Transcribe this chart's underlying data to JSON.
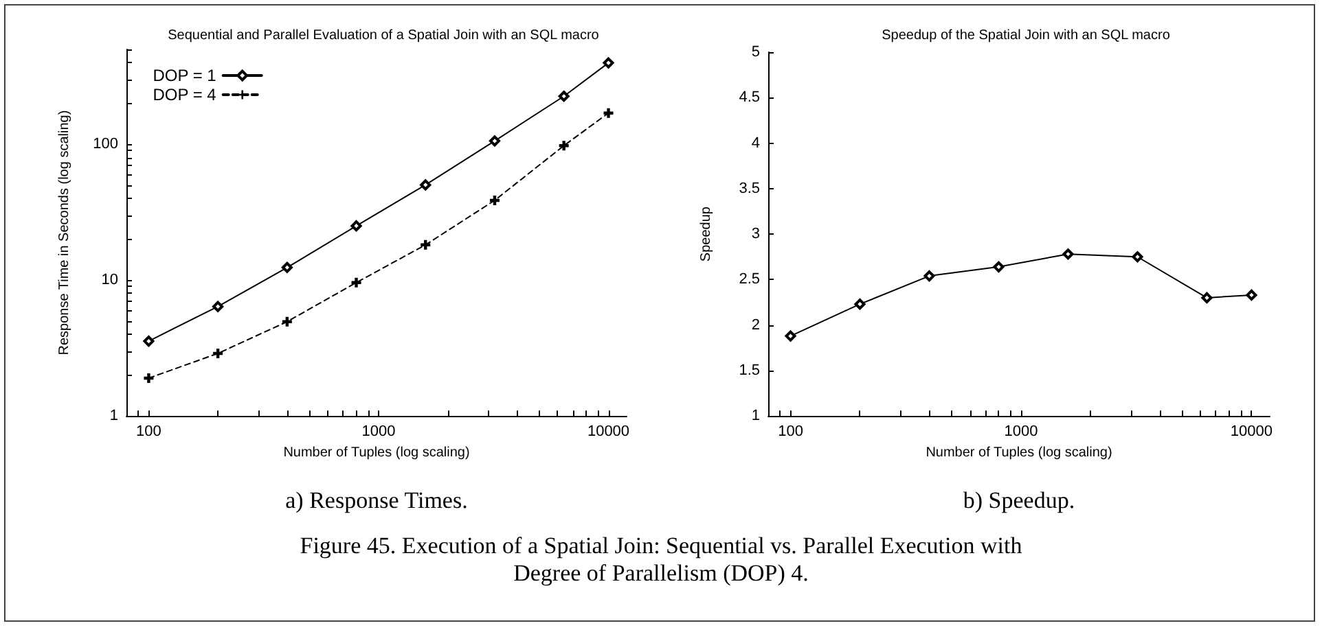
{
  "chart_data": [
    {
      "type": "line",
      "title": "Sequential and Parallel Evaluation of a Spatial Join with an SQL macro",
      "xlabel": "Number of Tuples (log scaling)",
      "ylabel": "Response Time in Seconds (log scaling)",
      "log": "xy",
      "x": [
        100,
        200,
        400,
        800,
        1600,
        3200,
        6400,
        10000
      ],
      "series": [
        {
          "name": "DOP = 1",
          "color": "#000000",
          "marker": "diamond",
          "line_style": "solid",
          "values": [
            3.56,
            6.4,
            12.4,
            25.1,
            50.3,
            106,
            226,
            398
          ]
        },
        {
          "name": "DOP = 4",
          "color": "#000000",
          "marker": "cross",
          "line_style": "dashed",
          "values": [
            1.9,
            2.89,
            4.95,
            9.6,
            18.2,
            38.7,
            97.8,
            170
          ]
        }
      ],
      "xlim": [
        80,
        12000
      ],
      "xticks": [
        {
          "value": 80,
          "label": null
        },
        {
          "value": 90,
          "label": null
        },
        100,
        {
          "value": 200,
          "label": null
        },
        {
          "value": 300,
          "label": null
        },
        {
          "value": 400,
          "label": null
        },
        {
          "value": 500,
          "label": null
        },
        {
          "value": 600,
          "label": null
        },
        {
          "value": 700,
          "label": null
        },
        {
          "value": 800,
          "label": null
        },
        {
          "value": 900,
          "label": null
        },
        1000,
        {
          "value": 2000,
          "label": null
        },
        {
          "value": 3000,
          "label": null
        },
        {
          "value": 4000,
          "label": null
        },
        {
          "value": 5000,
          "label": null
        },
        {
          "value": 6000,
          "label": null
        },
        {
          "value": 7000,
          "label": null
        },
        {
          "value": 8000,
          "label": null
        },
        {
          "value": 9000,
          "label": null
        },
        10000
      ],
      "ylim": [
        1,
        500
      ],
      "yticks": [
        1,
        {
          "value": 2,
          "label": null
        },
        {
          "value": 3,
          "label": null
        },
        {
          "value": 4,
          "label": null
        },
        {
          "value": 5,
          "label": null
        },
        {
          "value": 6,
          "label": null
        },
        {
          "value": 7,
          "label": null
        },
        {
          "value": 8,
          "label": null
        },
        {
          "value": 9,
          "label": null
        },
        10,
        {
          "value": 20,
          "label": null
        },
        {
          "value": 30,
          "label": null
        },
        {
          "value": 40,
          "label": null
        },
        {
          "value": 50,
          "label": null
        },
        {
          "value": 60,
          "label": null
        },
        {
          "value": 70,
          "label": null
        },
        {
          "value": 80,
          "label": null
        },
        {
          "value": 90,
          "label": null
        },
        100,
        {
          "value": 200,
          "label": null
        },
        {
          "value": 300,
          "label": null
        },
        {
          "value": 400,
          "label": null
        },
        {
          "value": 500,
          "label": null
        }
      ],
      "grid": false,
      "legend": "top left",
      "annotations": [
        "a) Response Times.",
        "Figure 45. Execution of a Spatial Join: Sequential vs. Parallel Execution with Degree of Parallelism (DOP) 4."
      ]
    },
    {
      "type": "line",
      "title": "Speedup of the Spatial Join with an SQL macro",
      "xlabel": "Number of Tuples (log scaling)",
      "ylabel": "Speedup",
      "log": "x",
      "x": [
        100,
        200,
        400,
        800,
        1600,
        3200,
        6400,
        10000
      ],
      "series": [
        {
          "color": "#000000",
          "marker": "diamond",
          "line_style": "solid",
          "values": [
            1.88,
            2.23,
            2.54,
            2.64,
            2.78,
            2.75,
            2.3,
            2.33
          ]
        }
      ],
      "xlim": [
        80,
        12000
      ],
      "xticks": [
        {
          "value": 80,
          "label": null
        },
        {
          "value": 90,
          "label": null
        },
        100,
        {
          "value": 200,
          "label": null
        },
        {
          "value": 300,
          "label": null
        },
        {
          "value": 400,
          "label": null
        },
        {
          "value": 500,
          "label": null
        },
        {
          "value": 600,
          "label": null
        },
        {
          "value": 700,
          "label": null
        },
        {
          "value": 800,
          "label": null
        },
        {
          "value": 900,
          "label": null
        },
        1000,
        {
          "value": 2000,
          "label": null
        },
        {
          "value": 3000,
          "label": null
        },
        {
          "value": 4000,
          "label": null
        },
        {
          "value": 5000,
          "label": null
        },
        {
          "value": 6000,
          "label": null
        },
        {
          "value": 7000,
          "label": null
        },
        {
          "value": 8000,
          "label": null
        },
        {
          "value": 9000,
          "label": null
        },
        10000
      ],
      "ylim": [
        1,
        5
      ],
      "yticks": [
        1,
        1.5,
        2,
        2.5,
        3,
        3.5,
        4,
        4.5,
        5
      ],
      "grid": false,
      "legend": false,
      "annotations": [
        "b) Speedup."
      ]
    }
  ]
}
